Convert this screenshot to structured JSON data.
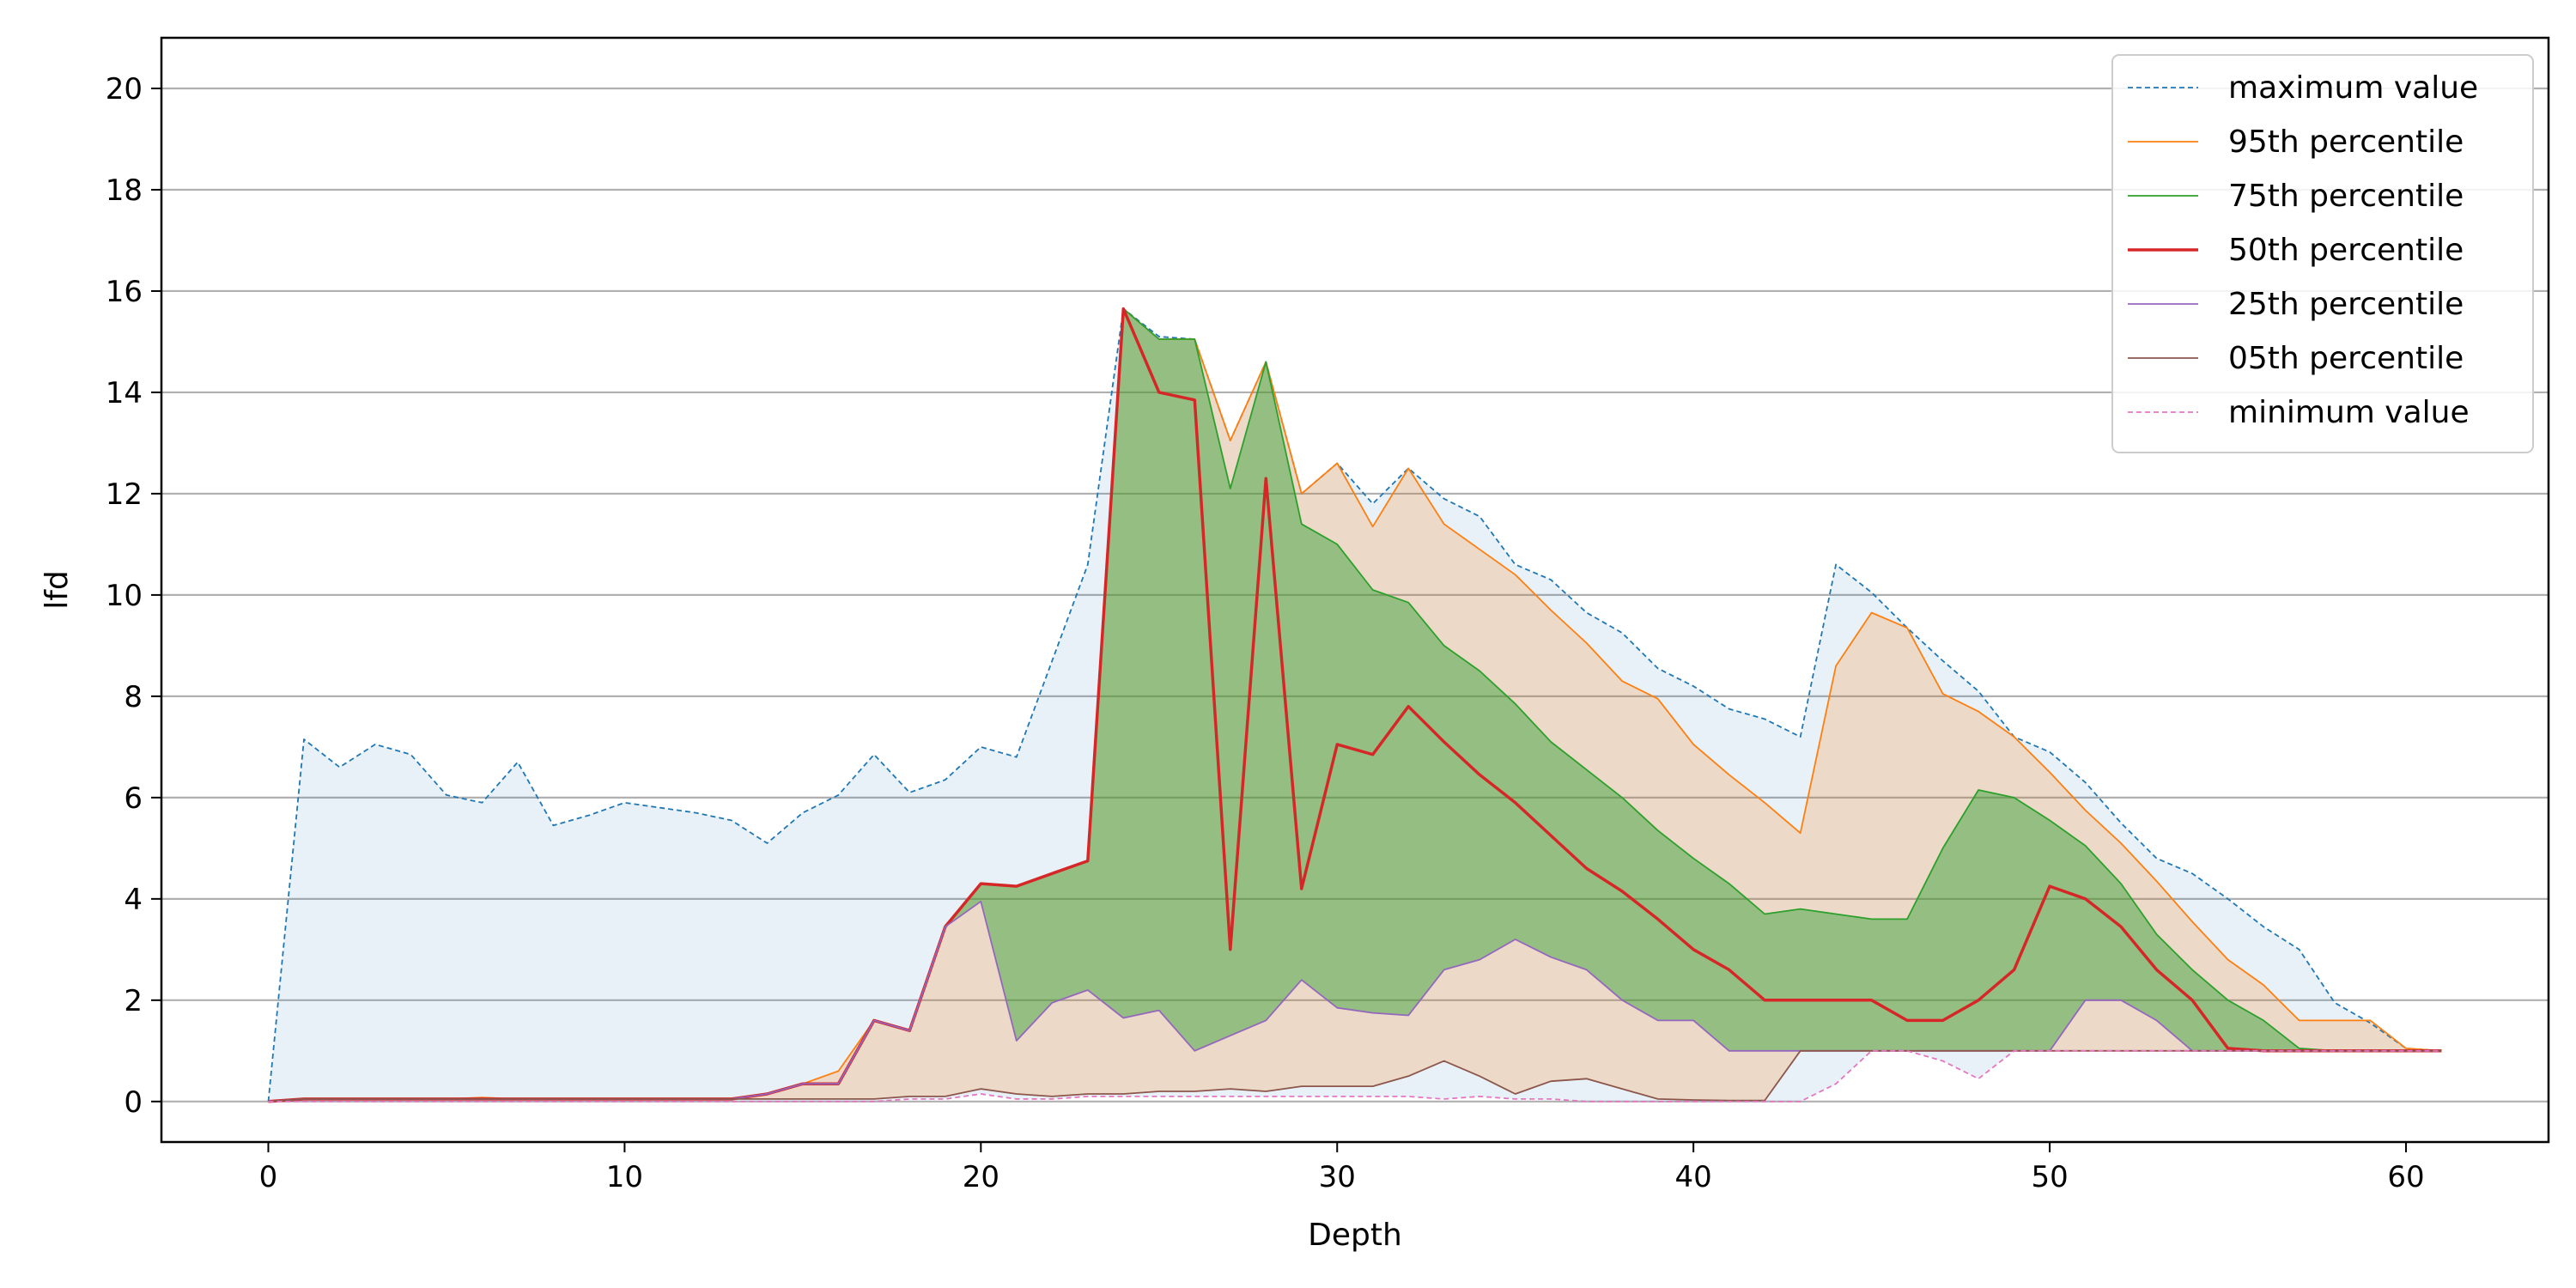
{
  "chart_data": {
    "type": "area",
    "title": "",
    "xlabel": "Depth",
    "ylabel": "lfd",
    "xlim": [
      -3,
      64
    ],
    "ylim": [
      -0.8,
      21
    ],
    "xticks": [
      0,
      10,
      20,
      30,
      40,
      50,
      60
    ],
    "yticks": [
      0,
      2,
      4,
      6,
      8,
      10,
      12,
      14,
      16,
      18,
      20
    ],
    "grid": "horizontal",
    "legend_position": "top-right",
    "x": [
      0,
      1,
      2,
      3,
      4,
      5,
      6,
      7,
      8,
      9,
      10,
      11,
      12,
      13,
      14,
      15,
      16,
      17,
      18,
      19,
      20,
      21,
      22,
      23,
      24,
      25,
      26,
      27,
      28,
      29,
      30,
      31,
      32,
      33,
      34,
      35,
      36,
      37,
      38,
      39,
      40,
      41,
      42,
      43,
      44,
      45,
      46,
      47,
      48,
      49,
      50,
      51,
      52,
      53,
      54,
      55,
      56,
      57,
      58,
      59,
      60,
      61
    ],
    "series": [
      {
        "name": "maximum value",
        "color": "#1f77b4",
        "style": "dashed",
        "values": [
          0,
          7.15,
          6.6,
          7.05,
          6.85,
          6.05,
          5.9,
          6.7,
          5.45,
          5.65,
          5.9,
          5.8,
          5.7,
          5.55,
          5.1,
          5.7,
          6.05,
          6.85,
          6.1,
          6.35,
          7.0,
          6.8,
          8.7,
          10.6,
          15.65,
          15.1,
          15.05,
          13.05,
          14.6,
          12.0,
          12.6,
          11.8,
          12.5,
          11.9,
          11.55,
          10.6,
          10.3,
          9.65,
          9.25,
          8.55,
          8.2,
          7.75,
          7.55,
          7.2,
          10.6,
          10.05,
          9.35,
          8.7,
          8.1,
          7.2,
          6.9,
          6.3,
          5.5,
          4.8,
          4.5,
          4.0,
          3.45,
          3.0,
          1.95,
          1.55,
          1.05,
          1.0
        ]
      },
      {
        "name": "95th percentile",
        "color": "#ff7f0e",
        "style": "solid",
        "values": [
          0,
          0.05,
          0.05,
          0.05,
          0.05,
          0.05,
          0.08,
          0.05,
          0.05,
          0.05,
          0.05,
          0.05,
          0.05,
          0.05,
          0.15,
          0.35,
          0.6,
          1.6,
          1.4,
          3.45,
          4.3,
          4.25,
          4.5,
          4.75,
          15.65,
          15.05,
          15.05,
          13.05,
          14.6,
          12.0,
          12.6,
          11.35,
          12.5,
          11.4,
          10.9,
          10.4,
          9.7,
          9.05,
          8.3,
          7.95,
          7.05,
          6.45,
          5.9,
          5.3,
          8.6,
          9.65,
          9.35,
          8.05,
          7.7,
          7.2,
          6.5,
          5.75,
          5.1,
          4.35,
          3.55,
          2.8,
          2.3,
          1.6,
          1.6,
          1.6,
          1.05,
          1.0
        ]
      },
      {
        "name": "75th percentile",
        "color": "#2ca02c",
        "style": "solid",
        "values": [
          0,
          0.05,
          0.05,
          0.05,
          0.05,
          0.05,
          0.05,
          0.05,
          0.05,
          0.05,
          0.05,
          0.05,
          0.05,
          0.05,
          0.15,
          0.35,
          0.35,
          1.6,
          1.4,
          3.45,
          4.3,
          4.25,
          4.5,
          4.75,
          15.65,
          15.05,
          15.05,
          12.1,
          14.6,
          11.4,
          11.0,
          10.1,
          9.85,
          9.0,
          8.5,
          7.85,
          7.1,
          6.55,
          6.0,
          5.35,
          4.8,
          4.3,
          3.7,
          3.8,
          3.7,
          3.6,
          3.6,
          5.0,
          6.15,
          6.0,
          5.55,
          5.05,
          4.3,
          3.3,
          2.6,
          2.0,
          1.6,
          1.05,
          1.0,
          1.0,
          1.0,
          1.0
        ]
      },
      {
        "name": "50th percentile",
        "color": "#d62728",
        "style": "solid",
        "values": [
          0,
          0.05,
          0.05,
          0.05,
          0.05,
          0.05,
          0.05,
          0.05,
          0.05,
          0.05,
          0.05,
          0.05,
          0.05,
          0.05,
          0.15,
          0.35,
          0.35,
          1.6,
          1.4,
          3.45,
          4.3,
          4.25,
          4.5,
          4.75,
          15.65,
          14.0,
          13.85,
          3.0,
          12.3,
          4.2,
          7.05,
          6.85,
          7.8,
          7.1,
          6.45,
          5.9,
          5.25,
          4.6,
          4.15,
          3.6,
          3.0,
          2.6,
          2.0,
          2.0,
          2.0,
          2.0,
          1.6,
          1.6,
          2.0,
          2.6,
          4.25,
          4.0,
          3.45,
          2.6,
          2.0,
          1.05,
          1.0,
          1.0,
          1.0,
          1.0,
          1.0,
          1.0
        ]
      },
      {
        "name": "25th percentile",
        "color": "#9467bd",
        "style": "solid",
        "values": [
          0,
          0.05,
          0.05,
          0.05,
          0.05,
          0.05,
          0.05,
          0.05,
          0.05,
          0.05,
          0.05,
          0.05,
          0.05,
          0.05,
          0.15,
          0.35,
          0.35,
          1.6,
          1.4,
          3.45,
          3.95,
          1.2,
          1.95,
          2.2,
          1.65,
          1.8,
          1.0,
          1.3,
          1.6,
          2.4,
          1.85,
          1.75,
          1.7,
          2.6,
          2.8,
          3.2,
          2.85,
          2.6,
          2.0,
          1.6,
          1.6,
          1.0,
          1.0,
          1.0,
          1.0,
          1.0,
          1.0,
          1.0,
          1.0,
          1.0,
          1.0,
          2.0,
          2.0,
          1.6,
          1.0,
          1.0,
          1.0,
          1.0,
          1.0,
          1.0,
          1.0,
          1.0
        ]
      },
      {
        "name": "05th percentile",
        "color": "#8c564b",
        "style": "solid",
        "values": [
          0,
          0.05,
          0.05,
          0.05,
          0.05,
          0.05,
          0.05,
          0.05,
          0.05,
          0.05,
          0.05,
          0.05,
          0.05,
          0.05,
          0.05,
          0.05,
          0.05,
          0.05,
          0.1,
          0.1,
          0.25,
          0.15,
          0.1,
          0.15,
          0.15,
          0.2,
          0.2,
          0.25,
          0.2,
          0.3,
          0.3,
          0.3,
          0.5,
          0.8,
          0.5,
          0.15,
          0.4,
          0.45,
          0.25,
          0.05,
          0.03,
          0.02,
          0.02,
          1.0,
          1.0,
          1.0,
          1.0,
          1.0,
          1.0,
          1.0,
          1.0,
          1.0,
          1.0,
          1.0,
          1.0,
          1.0,
          1.0,
          1.0,
          1.0,
          1.0,
          1.0,
          1.0
        ]
      },
      {
        "name": "minimum value",
        "color": "#e377c2",
        "style": "dashed",
        "values": [
          0,
          0.0,
          0.0,
          0.0,
          0.0,
          0.0,
          0.0,
          0.0,
          0.0,
          0.0,
          0.0,
          0.0,
          0.0,
          0.0,
          0.0,
          0.0,
          0.0,
          0.0,
          0.05,
          0.05,
          0.15,
          0.05,
          0.05,
          0.1,
          0.1,
          0.1,
          0.1,
          0.1,
          0.1,
          0.1,
          0.1,
          0.1,
          0.1,
          0.05,
          0.1,
          0.05,
          0.05,
          0.0,
          0.0,
          0.0,
          0.0,
          0.0,
          0.0,
          0.0,
          0.35,
          1.0,
          1.0,
          0.8,
          0.45,
          1.0,
          1.0,
          1.0,
          1.0,
          1.0,
          1.0,
          1.0,
          1.0,
          1.0,
          1.0,
          1.0,
          1.0,
          1.0
        ]
      }
    ],
    "bands": [
      {
        "between": [
          "maximum value",
          "minimum value"
        ],
        "color": "#1f77b4",
        "opacity": 0.1
      },
      {
        "between": [
          "95th percentile",
          "05th percentile"
        ],
        "color": "#ff7f0e",
        "opacity": 0.2
      },
      {
        "between": [
          "75th percentile",
          "25th percentile"
        ],
        "color": "#2ca02c",
        "opacity": 0.45
      }
    ]
  }
}
